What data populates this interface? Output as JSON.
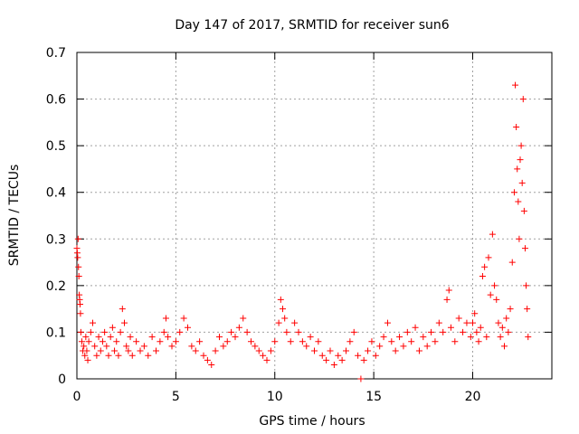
{
  "chart_data": {
    "type": "scatter",
    "title": "Day 147 of 2017, SRMTID for receiver sun6",
    "xlabel": "GPS time / hours",
    "ylabel": "SRMTID / TECUs",
    "xlim": [
      0,
      24
    ],
    "ylim": [
      0,
      0.7
    ],
    "xticks": [
      0,
      5,
      10,
      15,
      20
    ],
    "yticks": [
      0,
      0.1,
      0.2,
      0.3,
      0.4,
      0.5,
      0.6,
      0.7
    ],
    "xtick_labels": [
      "0",
      "5",
      "10",
      "15",
      "20"
    ],
    "ytick_labels": [
      "0",
      "0.1",
      "0.2",
      "0.3",
      "0.4",
      "0.5",
      "0.6",
      "0.7"
    ],
    "grid": true,
    "marker": "+",
    "color": "#ff0000",
    "series": [
      {
        "name": "SRMTID",
        "points": [
          [
            0.0,
            0.28
          ],
          [
            0.02,
            0.27
          ],
          [
            0.04,
            0.26
          ],
          [
            0.06,
            0.3
          ],
          [
            0.08,
            0.24
          ],
          [
            0.1,
            0.22
          ],
          [
            0.12,
            0.18
          ],
          [
            0.14,
            0.17
          ],
          [
            0.16,
            0.16
          ],
          [
            0.18,
            0.14
          ],
          [
            0.2,
            0.1
          ],
          [
            0.25,
            0.08
          ],
          [
            0.3,
            0.06
          ],
          [
            0.35,
            0.07
          ],
          [
            0.4,
            0.05
          ],
          [
            0.45,
            0.09
          ],
          [
            0.5,
            0.06
          ],
          [
            0.55,
            0.04
          ],
          [
            0.6,
            0.08
          ],
          [
            0.7,
            0.1
          ],
          [
            0.8,
            0.12
          ],
          [
            0.9,
            0.07
          ],
          [
            1.0,
            0.05
          ],
          [
            1.1,
            0.09
          ],
          [
            1.2,
            0.06
          ],
          [
            1.3,
            0.08
          ],
          [
            1.4,
            0.1
          ],
          [
            1.5,
            0.07
          ],
          [
            1.6,
            0.05
          ],
          [
            1.7,
            0.09
          ],
          [
            1.8,
            0.11
          ],
          [
            1.9,
            0.06
          ],
          [
            2.0,
            0.08
          ],
          [
            2.1,
            0.05
          ],
          [
            2.2,
            0.1
          ],
          [
            2.3,
            0.15
          ],
          [
            2.4,
            0.12
          ],
          [
            2.5,
            0.07
          ],
          [
            2.6,
            0.06
          ],
          [
            2.7,
            0.09
          ],
          [
            2.8,
            0.05
          ],
          [
            3.0,
            0.08
          ],
          [
            3.2,
            0.06
          ],
          [
            3.4,
            0.07
          ],
          [
            3.6,
            0.05
          ],
          [
            3.8,
            0.09
          ],
          [
            4.0,
            0.06
          ],
          [
            4.2,
            0.08
          ],
          [
            4.4,
            0.1
          ],
          [
            4.5,
            0.13
          ],
          [
            4.6,
            0.09
          ],
          [
            4.8,
            0.07
          ],
          [
            5.0,
            0.08
          ],
          [
            5.2,
            0.1
          ],
          [
            5.4,
            0.13
          ],
          [
            5.6,
            0.11
          ],
          [
            5.8,
            0.07
          ],
          [
            6.0,
            0.06
          ],
          [
            6.2,
            0.08
          ],
          [
            6.4,
            0.05
          ],
          [
            6.6,
            0.04
          ],
          [
            6.8,
            0.03
          ],
          [
            7.0,
            0.06
          ],
          [
            7.2,
            0.09
          ],
          [
            7.4,
            0.07
          ],
          [
            7.6,
            0.08
          ],
          [
            7.8,
            0.1
          ],
          [
            8.0,
            0.09
          ],
          [
            8.2,
            0.11
          ],
          [
            8.4,
            0.13
          ],
          [
            8.6,
            0.1
          ],
          [
            8.8,
            0.08
          ],
          [
            9.0,
            0.07
          ],
          [
            9.2,
            0.06
          ],
          [
            9.4,
            0.05
          ],
          [
            9.6,
            0.04
          ],
          [
            9.8,
            0.06
          ],
          [
            10.0,
            0.08
          ],
          [
            10.2,
            0.12
          ],
          [
            10.3,
            0.17
          ],
          [
            10.4,
            0.15
          ],
          [
            10.5,
            0.13
          ],
          [
            10.6,
            0.1
          ],
          [
            10.8,
            0.08
          ],
          [
            11.0,
            0.12
          ],
          [
            11.2,
            0.1
          ],
          [
            11.4,
            0.08
          ],
          [
            11.6,
            0.07
          ],
          [
            11.8,
            0.09
          ],
          [
            12.0,
            0.06
          ],
          [
            12.2,
            0.08
          ],
          [
            12.4,
            0.05
          ],
          [
            12.6,
            0.04
          ],
          [
            12.8,
            0.06
          ],
          [
            13.0,
            0.03
          ],
          [
            13.2,
            0.05
          ],
          [
            13.4,
            0.04
          ],
          [
            13.6,
            0.06
          ],
          [
            13.8,
            0.08
          ],
          [
            14.0,
            0.1
          ],
          [
            14.2,
            0.05
          ],
          [
            14.35,
            0.0
          ],
          [
            14.5,
            0.04
          ],
          [
            14.7,
            0.06
          ],
          [
            14.9,
            0.08
          ],
          [
            15.1,
            0.05
          ],
          [
            15.3,
            0.07
          ],
          [
            15.5,
            0.09
          ],
          [
            15.7,
            0.12
          ],
          [
            15.9,
            0.08
          ],
          [
            16.1,
            0.06
          ],
          [
            16.3,
            0.09
          ],
          [
            16.5,
            0.07
          ],
          [
            16.7,
            0.1
          ],
          [
            16.9,
            0.08
          ],
          [
            17.1,
            0.11
          ],
          [
            17.3,
            0.06
          ],
          [
            17.5,
            0.09
          ],
          [
            17.7,
            0.07
          ],
          [
            17.9,
            0.1
          ],
          [
            18.1,
            0.08
          ],
          [
            18.3,
            0.12
          ],
          [
            18.5,
            0.1
          ],
          [
            18.7,
            0.17
          ],
          [
            18.8,
            0.19
          ],
          [
            18.9,
            0.11
          ],
          [
            19.1,
            0.08
          ],
          [
            19.3,
            0.13
          ],
          [
            19.5,
            0.1
          ],
          [
            19.7,
            0.12
          ],
          [
            19.9,
            0.09
          ],
          [
            20.0,
            0.12
          ],
          [
            20.1,
            0.14
          ],
          [
            20.2,
            0.1
          ],
          [
            20.3,
            0.08
          ],
          [
            20.4,
            0.11
          ],
          [
            20.5,
            0.22
          ],
          [
            20.6,
            0.24
          ],
          [
            20.7,
            0.09
          ],
          [
            20.8,
            0.26
          ],
          [
            20.9,
            0.18
          ],
          [
            21.0,
            0.31
          ],
          [
            21.1,
            0.2
          ],
          [
            21.2,
            0.17
          ],
          [
            21.3,
            0.12
          ],
          [
            21.4,
            0.09
          ],
          [
            21.5,
            0.11
          ],
          [
            21.6,
            0.07
          ],
          [
            21.7,
            0.13
          ],
          [
            21.8,
            0.1
          ],
          [
            21.9,
            0.15
          ],
          [
            22.0,
            0.25
          ],
          [
            22.1,
            0.4
          ],
          [
            22.15,
            0.63
          ],
          [
            22.2,
            0.54
          ],
          [
            22.25,
            0.45
          ],
          [
            22.3,
            0.38
          ],
          [
            22.35,
            0.3
          ],
          [
            22.4,
            0.47
          ],
          [
            22.45,
            0.5
          ],
          [
            22.5,
            0.42
          ],
          [
            22.55,
            0.6
          ],
          [
            22.6,
            0.36
          ],
          [
            22.65,
            0.28
          ],
          [
            22.7,
            0.2
          ],
          [
            22.75,
            0.15
          ],
          [
            22.8,
            0.09
          ]
        ]
      }
    ]
  }
}
